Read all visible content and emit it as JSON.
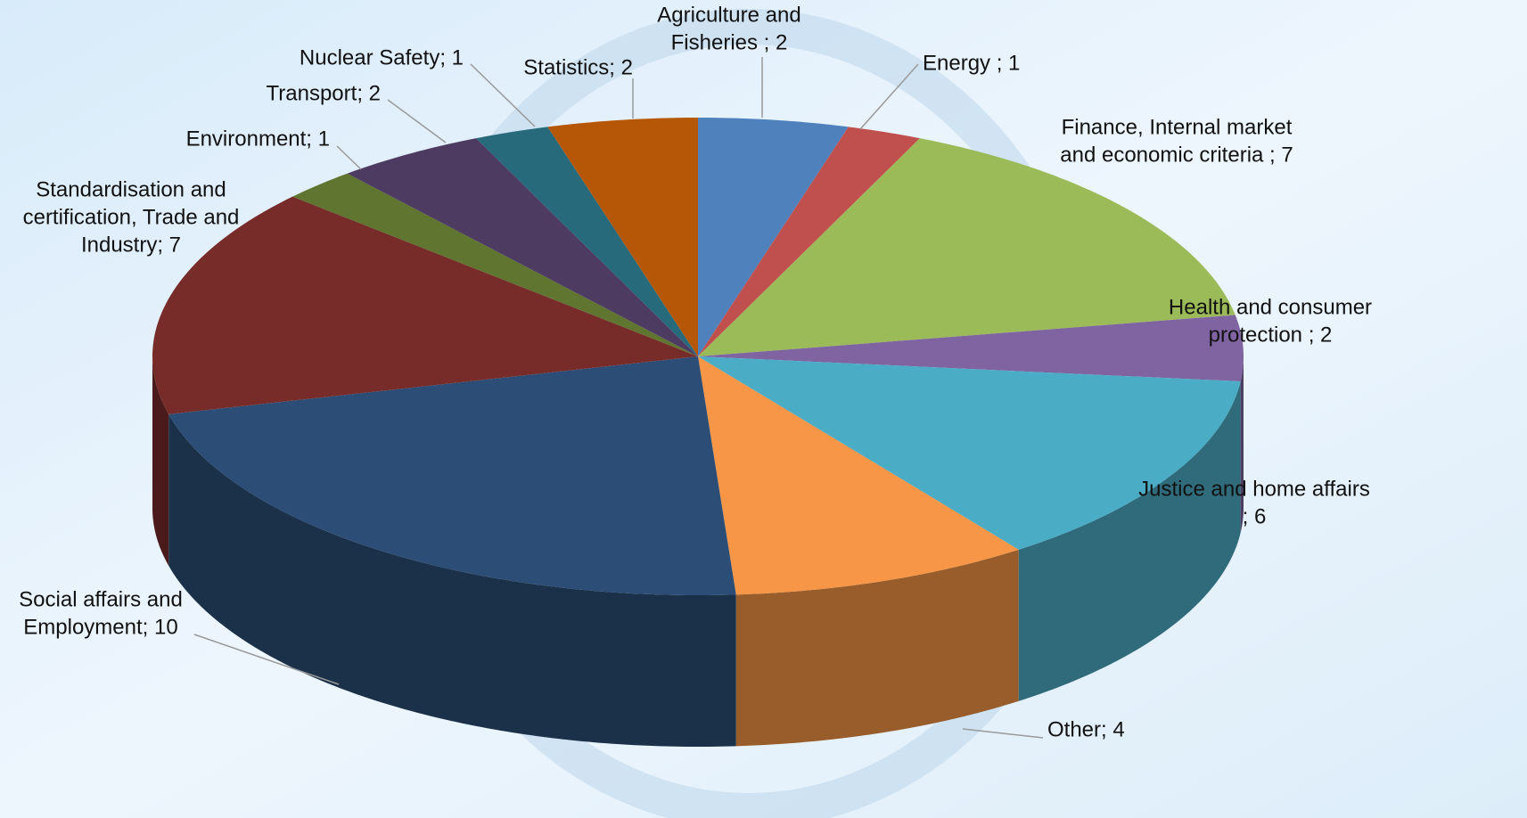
{
  "chart_data": {
    "type": "pie3d",
    "labels": [
      [
        "Agriculture and",
        "Fisheries ; 2"
      ],
      [
        "Energy ; 1"
      ],
      [
        "Finance, Internal market",
        "and economic criteria ; 7"
      ],
      [
        "Health and consumer",
        "protection ; 2"
      ],
      [
        "Justice and home affairs",
        "; 6"
      ],
      [
        "Other; 4"
      ],
      [
        "Social affairs and",
        "Employment; 10"
      ],
      [
        "Standardisation and",
        "certification, Trade and",
        "Industry; 7"
      ],
      [
        "Environment; 1"
      ],
      [
        "Transport; 2"
      ],
      [
        "Nuclear Safety; 1"
      ],
      [
        "Statistics; 2"
      ]
    ],
    "values": [
      2,
      1,
      7,
      2,
      6,
      4,
      10,
      7,
      1,
      2,
      1,
      2
    ],
    "colors": [
      "#4f81bd",
      "#c0504d",
      "#9bbb59",
      "#8064a2",
      "#4bacc6",
      "#f79646",
      "#2c4d75",
      "#772c2a",
      "#5f7530",
      "#4d3b62",
      "#276a7c",
      "#b65708"
    ]
  }
}
